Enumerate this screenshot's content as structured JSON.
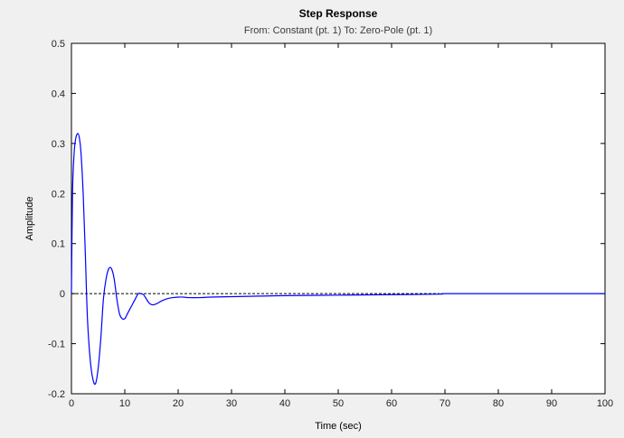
{
  "chart_data": {
    "type": "line",
    "title": "Step Response",
    "subtitle": "From: Constant (pt. 1)  To: Zero-Pole (pt. 1)",
    "xlabel": "Time (sec)",
    "ylabel": "Amplitude",
    "xlim": [
      0,
      100
    ],
    "ylim": [
      -0.2,
      0.5
    ],
    "xticks": [
      0,
      10,
      20,
      30,
      40,
      50,
      60,
      70,
      80,
      90,
      100
    ],
    "yticks": [
      -0.2,
      -0.1,
      0,
      0.1,
      0.2,
      0.3,
      0.4,
      0.5
    ],
    "xtick_labels": [
      "0",
      "10",
      "20",
      "30",
      "40",
      "50",
      "60",
      "70",
      "80",
      "90",
      "100"
    ],
    "ytick_labels": [
      "-0.2",
      "-0.1",
      "0",
      "0.1",
      "0.2",
      "0.3",
      "0.4",
      "0.5"
    ],
    "grid": false,
    "reference_line": {
      "y": 0,
      "style": "dashed",
      "color": "#000000"
    },
    "series": [
      {
        "color": "#0000ff",
        "x": [
          0,
          0.2,
          0.5,
          0.8,
          1.2,
          1.5,
          1.8,
          2.2,
          2.6,
          3.0,
          3.5,
          4.0,
          4.5,
          5.0,
          5.5,
          6.0,
          6.5,
          7.0,
          7.5,
          8.0,
          8.5,
          9.0,
          9.5,
          10.0,
          10.5,
          11.0,
          11.5,
          12.0,
          12.5,
          13.0,
          13.5,
          14.0,
          14.5,
          15.0,
          15.5,
          16.0,
          16.5,
          17.0,
          18.0,
          19.0,
          20.0,
          21.0,
          22.0,
          24.0,
          26.0,
          30.0,
          35.0,
          40.0,
          50.0,
          60.0,
          69.0,
          70.0,
          80.0,
          90.0,
          100.0
        ],
        "y": [
          0,
          0.2,
          0.28,
          0.31,
          0.32,
          0.31,
          0.28,
          0.2,
          0.08,
          -0.05,
          -0.13,
          -0.17,
          -0.18,
          -0.15,
          -0.09,
          -0.01,
          0.03,
          0.05,
          0.05,
          0.03,
          -0.01,
          -0.04,
          -0.05,
          -0.05,
          -0.04,
          -0.03,
          -0.02,
          -0.01,
          0.0,
          0.0,
          -0.002,
          -0.01,
          -0.018,
          -0.022,
          -0.022,
          -0.02,
          -0.017,
          -0.014,
          -0.01,
          -0.008,
          -0.007,
          -0.007,
          -0.008,
          -0.008,
          -0.007,
          -0.006,
          -0.005,
          -0.004,
          -0.003,
          -0.002,
          -0.001,
          0,
          0,
          0,
          0
        ]
      }
    ]
  }
}
